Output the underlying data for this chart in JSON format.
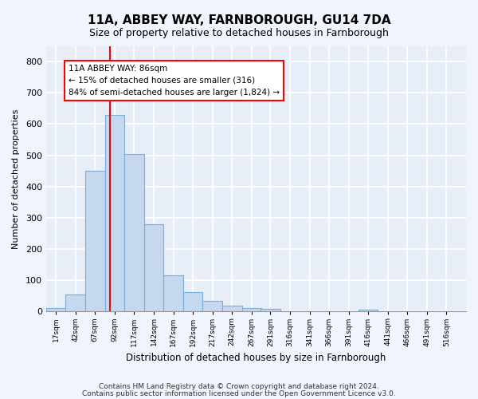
{
  "title": "11A, ABBEY WAY, FARNBOROUGH, GU14 7DA",
  "subtitle": "Size of property relative to detached houses in Farnborough",
  "xlabel": "Distribution of detached houses by size in Farnborough",
  "ylabel": "Number of detached properties",
  "bar_color": "#c5d8f0",
  "bar_edgecolor": "#7aadd4",
  "background_color": "#e8eef8",
  "grid_color": "#ffffff",
  "property_line_x": 86,
  "property_line_color": "red",
  "annotation_text": "11A ABBEY WAY: 86sqm\n← 15% of detached houses are smaller (316)\n84% of semi-detached houses are larger (1,824) →",
  "annotation_box_color": "red",
  "bins": [
    17,
    42,
    67,
    92,
    117,
    142,
    167,
    192,
    217,
    242,
    267,
    291,
    316,
    341,
    366,
    391,
    416,
    441,
    466,
    491,
    516
  ],
  "counts": [
    12,
    55,
    450,
    628,
    503,
    280,
    117,
    63,
    35,
    18,
    10,
    8,
    0,
    0,
    0,
    0,
    7,
    0,
    0,
    0,
    0
  ],
  "tick_labels": [
    "17sqm",
    "42sqm",
    "67sqm",
    "92sqm",
    "117sqm",
    "142sqm",
    "167sqm",
    "192sqm",
    "217sqm",
    "242sqm",
    "267sqm",
    "291sqm",
    "316sqm",
    "341sqm",
    "366sqm",
    "391sqm",
    "416sqm",
    "441sqm",
    "466sqm",
    "491sqm",
    "516sqm"
  ],
  "ylim": [
    0,
    850
  ],
  "yticks": [
    0,
    100,
    200,
    300,
    400,
    500,
    600,
    700,
    800
  ],
  "footer_line1": "Contains HM Land Registry data © Crown copyright and database right 2024.",
  "footer_line2": "Contains public sector information licensed under the Open Government Licence v3.0."
}
